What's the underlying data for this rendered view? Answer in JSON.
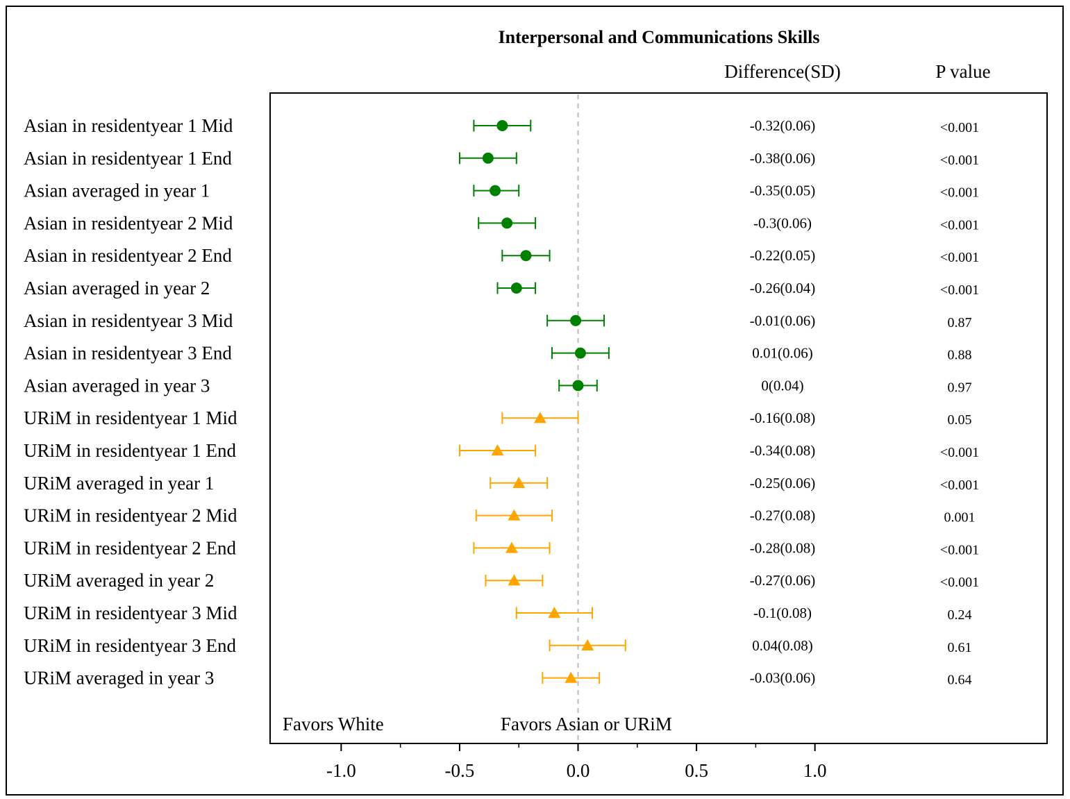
{
  "chart_data": {
    "type": "forest",
    "title": "Interpersonal and Communications Skills",
    "column_headers": {
      "difference": "Difference(SD)",
      "pvalue": "P value"
    },
    "xlim": [
      -1.3,
      1.98
    ],
    "xticks": [
      {
        "value": -1.0,
        "label": "-1.0"
      },
      {
        "value": -0.5,
        "label": "-0.5"
      },
      {
        "value": 0.0,
        "label": "0.0"
      },
      {
        "value": 0.5,
        "label": "0.5"
      },
      {
        "value": 1.0,
        "label": "1.0"
      }
    ],
    "minor_ticks": [
      -0.75,
      -0.25,
      0.25,
      0.75
    ],
    "reference_line": 0,
    "favor_labels": {
      "left": "Favors White",
      "right": "Favors Asian or URiM"
    },
    "grid": false,
    "groups": [
      {
        "name": "Asian",
        "color": "#008000",
        "marker": "circle"
      },
      {
        "name": "URiM",
        "color": "#FFA500",
        "marker": "triangle"
      }
    ],
    "rows": [
      {
        "label": "Asian in residentyear 1 Mid",
        "group": "Asian",
        "est": -0.32,
        "lo": -0.44,
        "hi": -0.2,
        "diff": "-0.32(0.06)",
        "p": "<0.001"
      },
      {
        "label": "Asian in residentyear 1 End",
        "group": "Asian",
        "est": -0.38,
        "lo": -0.5,
        "hi": -0.26,
        "diff": "-0.38(0.06)",
        "p": "<0.001"
      },
      {
        "label": "Asian averaged in year 1",
        "group": "Asian",
        "est": -0.35,
        "lo": -0.44,
        "hi": -0.25,
        "diff": "-0.35(0.05)",
        "p": "<0.001"
      },
      {
        "label": "Asian in residentyear 2 Mid",
        "group": "Asian",
        "est": -0.3,
        "lo": -0.42,
        "hi": -0.18,
        "diff": "-0.3(0.06)",
        "p": "<0.001"
      },
      {
        "label": "Asian in residentyear 2 End",
        "group": "Asian",
        "est": -0.22,
        "lo": -0.32,
        "hi": -0.12,
        "diff": "-0.22(0.05)",
        "p": "<0.001"
      },
      {
        "label": "Asian averaged in year 2",
        "group": "Asian",
        "est": -0.26,
        "lo": -0.34,
        "hi": -0.18,
        "diff": "-0.26(0.04)",
        "p": "<0.001"
      },
      {
        "label": "Asian in residentyear 3 Mid",
        "group": "Asian",
        "est": -0.01,
        "lo": -0.13,
        "hi": 0.11,
        "diff": "-0.01(0.06)",
        "p": "0.87"
      },
      {
        "label": "Asian in residentyear 3 End",
        "group": "Asian",
        "est": 0.01,
        "lo": -0.11,
        "hi": 0.13,
        "diff": "0.01(0.06)",
        "p": "0.88"
      },
      {
        "label": "Asian averaged in year 3",
        "group": "Asian",
        "est": 0.0,
        "lo": -0.08,
        "hi": 0.08,
        "diff": "0(0.04)",
        "p": "0.97"
      },
      {
        "label": "URiM in residentyear 1 Mid",
        "group": "URiM",
        "est": -0.16,
        "lo": -0.32,
        "hi": 0.0,
        "diff": "-0.16(0.08)",
        "p": "0.05"
      },
      {
        "label": "URiM in residentyear 1 End",
        "group": "URiM",
        "est": -0.34,
        "lo": -0.5,
        "hi": -0.18,
        "diff": "-0.34(0.08)",
        "p": "<0.001"
      },
      {
        "label": "URiM averaged in year 1",
        "group": "URiM",
        "est": -0.25,
        "lo": -0.37,
        "hi": -0.13,
        "diff": "-0.25(0.06)",
        "p": "<0.001"
      },
      {
        "label": "URiM in residentyear 2 Mid",
        "group": "URiM",
        "est": -0.27,
        "lo": -0.43,
        "hi": -0.11,
        "diff": "-0.27(0.08)",
        "p": "0.001"
      },
      {
        "label": "URiM in residentyear 2 End",
        "group": "URiM",
        "est": -0.28,
        "lo": -0.44,
        "hi": -0.12,
        "diff": "-0.28(0.08)",
        "p": "<0.001"
      },
      {
        "label": "URiM averaged in year 2",
        "group": "URiM",
        "est": -0.27,
        "lo": -0.39,
        "hi": -0.15,
        "diff": "-0.27(0.06)",
        "p": "<0.001"
      },
      {
        "label": "URiM in residentyear 3 Mid",
        "group": "URiM",
        "est": -0.1,
        "lo": -0.26,
        "hi": 0.06,
        "diff": "-0.1(0.08)",
        "p": "0.24"
      },
      {
        "label": "URiM in residentyear 3 End",
        "group": "URiM",
        "est": 0.04,
        "lo": -0.12,
        "hi": 0.2,
        "diff": "0.04(0.08)",
        "p": "0.61"
      },
      {
        "label": "URiM averaged in year 3",
        "group": "URiM",
        "est": -0.03,
        "lo": -0.15,
        "hi": 0.09,
        "diff": "-0.03(0.06)",
        "p": "0.64"
      }
    ]
  }
}
